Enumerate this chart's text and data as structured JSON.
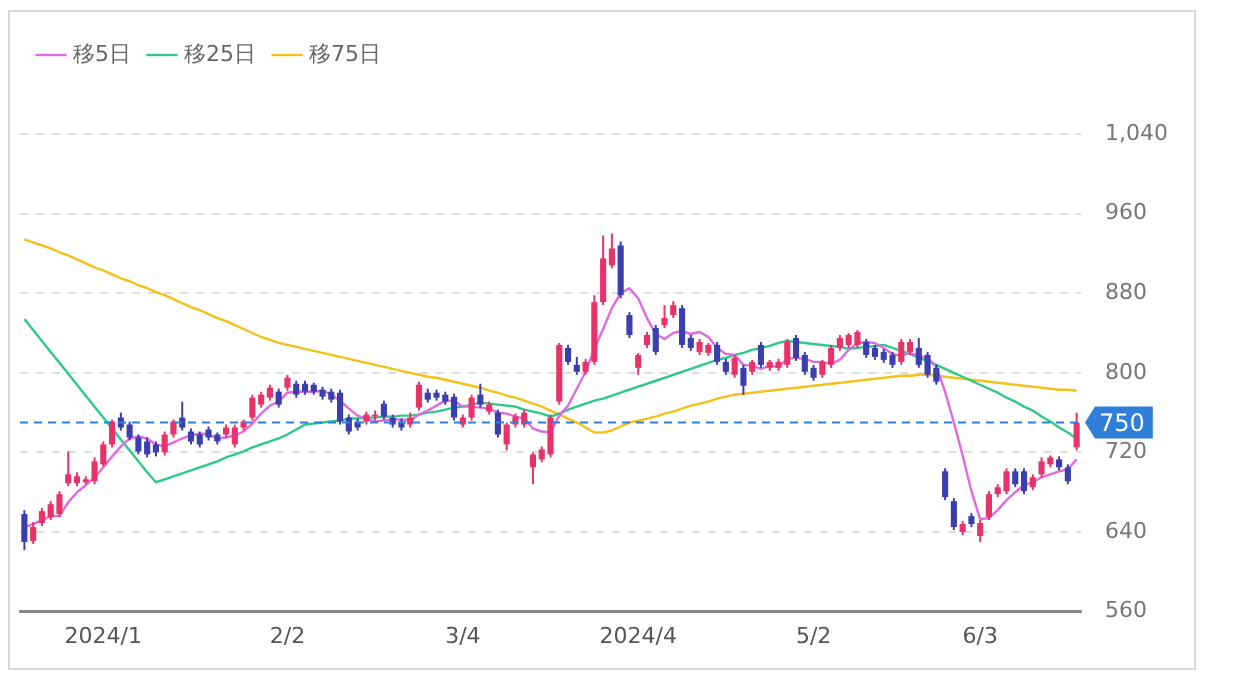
{
  "chart_data": {
    "type": "candlestick",
    "legend": "top left",
    "grid": "y",
    "categories": [
      null,
      null,
      null,
      null,
      null,
      null,
      null,
      null,
      null,
      "2024/1",
      null,
      null,
      null,
      null,
      null,
      null,
      null,
      null,
      null,
      null,
      null,
      null,
      null,
      null,
      null,
      null,
      null,
      null,
      null,
      null,
      "2/2",
      null,
      null,
      null,
      null,
      null,
      null,
      null,
      null,
      null,
      null,
      null,
      null,
      null,
      null,
      null,
      null,
      null,
      null,
      null,
      "3/4",
      null,
      null,
      null,
      null,
      null,
      null,
      null,
      null,
      null,
      null,
      null,
      null,
      null,
      null,
      null,
      null,
      null,
      null,
      null,
      "2024/4",
      null,
      null,
      null,
      null,
      null,
      null,
      null,
      null,
      null,
      null,
      null,
      null,
      null,
      null,
      null,
      null,
      null,
      null,
      null,
      "5/2",
      null,
      null,
      null,
      null,
      null,
      null,
      null,
      null,
      null,
      null,
      null,
      null,
      null,
      null,
      null,
      null,
      null,
      null,
      "6/3",
      null,
      null,
      null,
      null,
      null,
      null,
      null,
      null,
      null,
      null,
      null
    ],
    "ylim": [
      560,
      1040
    ],
    "yticks": [
      560,
      640,
      720,
      800,
      880,
      960,
      {
        "value": 1040,
        "label": "1,040"
      }
    ],
    "ref_lines": [
      {
        "axis": "y",
        "value": 750,
        "label": "750",
        "color": "#2f7fd8",
        "line_style": "dashed"
      }
    ],
    "series": [
      {
        "type": "line",
        "name": "移5日",
        "color": "#e06be0",
        "values": [
          645,
          648,
          652,
          656,
          656,
          670,
          680,
          687,
          695,
          705,
          716,
          726,
          734,
          736,
          734,
          728,
          726,
          730,
          734,
          737,
          739,
          738,
          734,
          735,
          737,
          741,
          749,
          759,
          767,
          771,
          780,
          781,
          781,
          781,
          782,
          778,
          772,
          764,
          757,
          754,
          751,
          752,
          753,
          753,
          752,
          758,
          762,
          767,
          772,
          772,
          766,
          766,
          765,
          764,
          760,
          759,
          756,
          754,
          744,
          741,
          740,
          757,
          767,
          784,
          801,
          824,
          844,
          865,
          880,
          885,
          875,
          855,
          839,
          834,
          840,
          842,
          839,
          841,
          836,
          825,
          819,
          818,
          808,
          807,
          804,
          807,
          806,
          814,
          815,
          814,
          811,
          811,
          809,
          813,
          823,
          830,
          831,
          830,
          825,
          819,
          817,
          820,
          817,
          815,
          806,
          781,
          750,
          717,
          681,
          653,
          654,
          662,
          672,
          680,
          687,
          690,
          695,
          698,
          701,
          703,
          713
        ]
      },
      {
        "type": "line",
        "name": "移25日",
        "color": "#2ec98a",
        "values": [
          854,
          843,
          832,
          821,
          810,
          799,
          788,
          777,
          766,
          755,
          744,
          733,
          722,
          711,
          700,
          690,
          693,
          696,
          699,
          702,
          705,
          708,
          711,
          715,
          718,
          721,
          725,
          728,
          731,
          734,
          738,
          743,
          748,
          749,
          750,
          751,
          752,
          754,
          754,
          755,
          755,
          756,
          756,
          757,
          757,
          758,
          760,
          761,
          763,
          765,
          766,
          768,
          770,
          769,
          768,
          767,
          766,
          763,
          761,
          759,
          756,
          759,
          763,
          766,
          769,
          772,
          774,
          777,
          780,
          783,
          786,
          789,
          792,
          795,
          798,
          801,
          804,
          807,
          810,
          813,
          815,
          818,
          820,
          823,
          825,
          827,
          830,
          832,
          831,
          830,
          829,
          828,
          827,
          826,
          824,
          825,
          826,
          827,
          828,
          825,
          822,
          819,
          815,
          812,
          808,
          804,
          800,
          796,
          792,
          788,
          784,
          780,
          775,
          771,
          766,
          762,
          756,
          751,
          745,
          740,
          734
        ]
      },
      {
        "type": "line",
        "name": "移75日",
        "color": "#f2c21b",
        "values": [
          934,
          931,
          928,
          925,
          921,
          918,
          914,
          910,
          906,
          903,
          899,
          895,
          892,
          888,
          885,
          881,
          878,
          874,
          870,
          866,
          863,
          859,
          855,
          852,
          848,
          844,
          840,
          836,
          833,
          830,
          828,
          826,
          824,
          822,
          820,
          818,
          816,
          814,
          812,
          810,
          808,
          806,
          804,
          802,
          800,
          798,
          796,
          795,
          793,
          791,
          789,
          787,
          785,
          782,
          780,
          777,
          775,
          772,
          769,
          766,
          762,
          758,
          754,
          750,
          745,
          740,
          740,
          742,
          746,
          750,
          752,
          754,
          756,
          759,
          761,
          764,
          767,
          769,
          771,
          774,
          776,
          778,
          779,
          780,
          781,
          782,
          783,
          784,
          785,
          786,
          787,
          788,
          789,
          790,
          791,
          792,
          793,
          794,
          795,
          796,
          797,
          797,
          798,
          798,
          797,
          796,
          795,
          794,
          793,
          792,
          791,
          790,
          789,
          788,
          787,
          786,
          785,
          784,
          783,
          783,
          782
        ]
      },
      {
        "ohlc": [
          [
            658,
            662,
            622,
            630
          ],
          [
            631,
            650,
            628,
            645
          ],
          [
            649,
            664,
            646,
            661
          ],
          [
            655,
            671,
            652,
            668
          ],
          [
            658,
            681,
            655,
            678
          ],
          [
            689,
            721,
            686,
            698
          ],
          [
            689,
            700,
            686,
            696
          ],
          [
            690,
            696,
            688,
            693
          ],
          [
            691,
            715,
            688,
            711
          ],
          [
            708,
            731,
            706,
            728
          ],
          [
            728,
            753,
            725,
            751
          ],
          [
            755,
            760,
            742,
            745
          ],
          [
            748,
            751,
            732,
            735
          ],
          [
            735,
            738,
            718,
            721
          ],
          [
            731,
            735,
            715,
            718
          ],
          [
            728,
            731,
            716,
            720
          ],
          [
            720,
            741,
            717,
            738
          ],
          [
            738,
            753,
            735,
            751
          ],
          [
            755,
            771,
            742,
            745
          ],
          [
            741,
            744,
            728,
            731
          ],
          [
            738,
            741,
            725,
            728
          ],
          [
            743,
            746,
            732,
            735
          ],
          [
            738,
            740,
            728,
            731
          ],
          [
            738,
            748,
            735,
            745
          ],
          [
            728,
            748,
            725,
            745
          ],
          [
            745,
            753,
            742,
            751
          ],
          [
            755,
            778,
            752,
            775
          ],
          [
            768,
            781,
            765,
            778
          ],
          [
            775,
            788,
            772,
            785
          ],
          [
            781,
            784,
            765,
            768
          ],
          [
            785,
            798,
            782,
            795
          ],
          [
            789,
            792,
            775,
            778
          ],
          [
            789,
            792,
            778,
            781
          ],
          [
            788,
            790,
            778,
            781
          ],
          [
            783,
            786,
            773,
            776
          ],
          [
            781,
            784,
            770,
            773
          ],
          [
            780,
            783,
            748,
            751
          ],
          [
            755,
            758,
            738,
            741
          ],
          [
            751,
            754,
            742,
            745
          ],
          [
            751,
            761,
            748,
            758
          ],
          [
            756,
            762,
            752,
            758
          ],
          [
            769,
            772,
            753,
            756
          ],
          [
            755,
            758,
            745,
            748
          ],
          [
            751,
            754,
            742,
            745
          ],
          [
            748,
            760,
            745,
            755
          ],
          [
            765,
            791,
            762,
            788
          ],
          [
            780,
            784,
            770,
            773
          ],
          [
            780,
            783,
            772,
            775
          ],
          [
            778,
            781,
            768,
            771
          ],
          [
            776,
            779,
            752,
            755
          ],
          [
            748,
            758,
            745,
            755
          ],
          [
            755,
            778,
            752,
            775
          ],
          [
            778,
            789,
            765,
            768
          ],
          [
            761,
            771,
            758,
            768
          ],
          [
            760,
            763,
            735,
            738
          ],
          [
            728,
            750,
            722,
            748
          ],
          [
            748,
            759,
            745,
            756
          ],
          [
            748,
            763,
            745,
            760
          ],
          [
            705,
            720,
            688,
            718
          ],
          [
            713,
            726,
            710,
            723
          ],
          [
            718,
            758,
            715,
            755
          ],
          [
            771,
            830,
            768,
            828
          ],
          [
            825,
            828,
            808,
            811
          ],
          [
            808,
            816,
            798,
            801
          ],
          [
            801,
            814,
            798,
            811
          ],
          [
            811,
            878,
            808,
            871
          ],
          [
            871,
            938,
            868,
            915
          ],
          [
            908,
            940,
            905,
            925
          ],
          [
            928,
            932,
            875,
            878
          ],
          [
            858,
            861,
            835,
            838
          ],
          [
            805,
            820,
            798,
            818
          ],
          [
            828,
            841,
            825,
            838
          ],
          [
            845,
            848,
            818,
            821
          ],
          [
            848,
            868,
            845,
            855
          ],
          [
            858,
            872,
            855,
            868
          ],
          [
            865,
            868,
            825,
            828
          ],
          [
            835,
            838,
            822,
            825
          ],
          [
            821,
            834,
            818,
            831
          ],
          [
            820,
            830,
            817,
            828
          ],
          [
            828,
            831,
            808,
            811
          ],
          [
            811,
            814,
            798,
            801
          ],
          [
            798,
            818,
            795,
            815
          ],
          [
            805,
            808,
            778,
            787
          ],
          [
            801,
            813,
            798,
            811
          ],
          [
            828,
            831,
            805,
            808
          ],
          [
            805,
            813,
            802,
            811
          ],
          [
            805,
            814,
            802,
            811
          ],
          [
            808,
            834,
            805,
            831
          ],
          [
            835,
            838,
            812,
            815
          ],
          [
            818,
            821,
            798,
            801
          ],
          [
            805,
            808,
            792,
            795
          ],
          [
            798,
            813,
            795,
            811
          ],
          [
            808,
            828,
            805,
            825
          ],
          [
            825,
            838,
            822,
            835
          ],
          [
            828,
            840,
            825,
            838
          ],
          [
            828,
            843,
            825,
            841
          ],
          [
            831,
            834,
            815,
            818
          ],
          [
            825,
            828,
            813,
            816
          ],
          [
            821,
            824,
            810,
            813
          ],
          [
            818,
            821,
            805,
            808
          ],
          [
            811,
            834,
            808,
            831
          ],
          [
            821,
            834,
            818,
            831
          ],
          [
            825,
            835,
            805,
            808
          ],
          [
            818,
            821,
            795,
            798
          ],
          [
            805,
            808,
            788,
            791
          ],
          [
            701,
            704,
            672,
            675
          ],
          [
            671,
            674,
            642,
            645
          ],
          [
            640,
            651,
            637,
            648
          ],
          [
            656,
            659,
            645,
            648
          ],
          [
            636,
            652,
            630,
            649
          ],
          [
            655,
            681,
            652,
            678
          ],
          [
            678,
            688,
            675,
            685
          ],
          [
            681,
            704,
            678,
            701
          ],
          [
            701,
            704,
            685,
            688
          ],
          [
            701,
            704,
            678,
            681
          ],
          [
            685,
            698,
            682,
            695
          ],
          [
            698,
            715,
            695,
            711
          ],
          [
            708,
            717,
            705,
            715
          ],
          [
            713,
            716,
            702,
            705
          ],
          [
            705,
            708,
            688,
            691
          ],
          [
            725,
            760,
            722,
            750
          ]
        ],
        "colors": [
          "#3b3fae",
          "#e8336a",
          "#e8336a",
          "#e8336a",
          "#e8336a",
          "#e8336a",
          "#e8336a",
          "#e8336a",
          "#e8336a",
          "#e8336a",
          "#e8336a",
          "#3b3fae",
          "#3b3fae",
          "#3b3fae",
          "#3b3fae",
          "#3b3fae",
          "#e8336a",
          "#e8336a",
          "#3b3fae",
          "#3b3fae",
          "#3b3fae",
          "#3b3fae",
          "#3b3fae",
          "#e8336a",
          "#e8336a",
          "#e8336a",
          "#e8336a",
          "#e8336a",
          "#e8336a",
          "#3b3fae",
          "#e8336a",
          "#3b3fae",
          "#3b3fae",
          "#3b3fae",
          "#3b3fae",
          "#3b3fae",
          "#3b3fae",
          "#3b3fae",
          "#3b3fae",
          "#e8336a",
          "#e8336a",
          "#3b3fae",
          "#3b3fae",
          "#3b3fae",
          "#e8336a",
          "#e8336a",
          "#3b3fae",
          "#3b3fae",
          "#3b3fae",
          "#3b3fae",
          "#e8336a",
          "#e8336a",
          "#3b3fae",
          "#e8336a",
          "#3b3fae",
          "#e8336a",
          "#e8336a",
          "#e8336a",
          "#e8336a",
          "#e8336a",
          "#e8336a",
          "#e8336a",
          "#3b3fae",
          "#3b3fae",
          "#e8336a",
          "#e8336a",
          "#e8336a",
          "#e8336a",
          "#3b3fae",
          "#3b3fae",
          "#e8336a",
          "#e8336a",
          "#3b3fae",
          "#e8336a",
          "#e8336a",
          "#3b3fae",
          "#3b3fae",
          "#e8336a",
          "#e8336a",
          "#3b3fae",
          "#3b3fae",
          "#e8336a",
          "#3b3fae",
          "#e8336a",
          "#3b3fae",
          "#e8336a",
          "#e8336a",
          "#e8336a",
          "#3b3fae",
          "#3b3fae",
          "#3b3fae",
          "#e8336a",
          "#e8336a",
          "#e8336a",
          "#e8336a",
          "#e8336a",
          "#3b3fae",
          "#3b3fae",
          "#3b3fae",
          "#3b3fae",
          "#e8336a",
          "#e8336a",
          "#3b3fae",
          "#3b3fae",
          "#3b3fae",
          "#3b3fae",
          "#3b3fae",
          "#e8336a",
          "#3b3fae",
          "#e8336a",
          "#e8336a",
          "#e8336a",
          "#e8336a",
          "#3b3fae",
          "#3b3fae",
          "#e8336a",
          "#e8336a",
          "#e8336a",
          "#3b3fae",
          "#3b3fae",
          "#e8336a"
        ]
      }
    ]
  }
}
